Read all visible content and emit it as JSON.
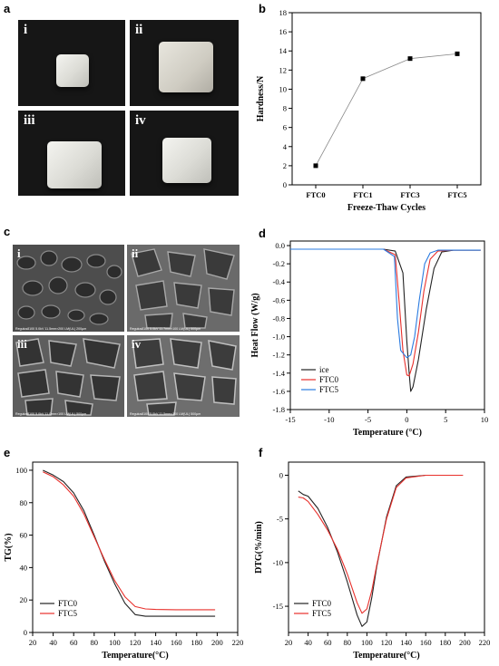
{
  "panels": {
    "a": {
      "label": "a",
      "photos": [
        "i",
        "ii",
        "iii",
        "iv"
      ]
    },
    "c": {
      "label": "c",
      "images": [
        {
          "numeral": "i",
          "caption": "Regulus8100 5.0kV 11.5mm×200 LM(UL)   200µm"
        },
        {
          "numeral": "ii",
          "caption": "Regulus8100 5.0kV 11.7mm×100 LM(UL)   500µm"
        },
        {
          "numeral": "iii",
          "caption": "Regulus8100 5.0kV 11.0mm×100 LM(UL)   500µm"
        },
        {
          "numeral": "iv",
          "caption": "Regulus8100 5.0kV 11.5mm×100 LM(UL)   500µm"
        }
      ]
    }
  },
  "chart_data": [
    {
      "id": "b",
      "type": "line",
      "panel_label": "b",
      "categories": [
        "FTC0",
        "FTC1",
        "FTC3",
        "FTC5"
      ],
      "series": [
        {
          "values": [
            2.0,
            11.1,
            13.2,
            13.7
          ],
          "color": "#000000"
        }
      ],
      "xlabel": "Freeze-Thaw Cycles",
      "ylabel": "Hardness/N",
      "ylim": [
        0,
        18
      ],
      "yticks": [
        0,
        2,
        4,
        6,
        8,
        10,
        12,
        14,
        16,
        18
      ]
    },
    {
      "id": "d",
      "type": "line",
      "panel_label": "d",
      "xlabel": "Temperature (°C)",
      "ylabel": "Heat Flow (W/g)",
      "xlim": [
        -15,
        10
      ],
      "ylim": [
        -1.8,
        0.05
      ],
      "xticks": [
        -15,
        -10,
        -5,
        0,
        5,
        10
      ],
      "yticks": [
        0.0,
        -0.2,
        -0.4,
        -0.6,
        -0.8,
        -1.0,
        -1.2,
        -1.4,
        -1.6,
        -1.8
      ],
      "legend_position": "bottom-left",
      "series": [
        {
          "name": "ice",
          "color": "#222222",
          "x": [
            -15,
            -3,
            -1.5,
            -0.5,
            0,
            0.3,
            0.5,
            0.8,
            1.5,
            2.5,
            3.5,
            4.5,
            6,
            9.5
          ],
          "y": [
            -0.04,
            -0.04,
            -0.06,
            -0.3,
            -1.05,
            -1.4,
            -1.6,
            -1.55,
            -1.25,
            -0.7,
            -0.25,
            -0.07,
            -0.05,
            -0.05
          ]
        },
        {
          "name": "FTC0",
          "color": "#e8302c",
          "x": [
            -15,
            -3,
            -1.5,
            -1,
            -0.5,
            0,
            0.3,
            0.8,
            1.5,
            2.2,
            3,
            4,
            6,
            9.5
          ],
          "y": [
            -0.04,
            -0.04,
            -0.1,
            -0.6,
            -1.15,
            -1.42,
            -1.43,
            -1.3,
            -0.95,
            -0.5,
            -0.15,
            -0.06,
            -0.05,
            -0.05
          ]
        },
        {
          "name": "FTC5",
          "color": "#2a7be0",
          "x": [
            -15,
            -3,
            -1.6,
            -1.2,
            -0.8,
            -0.3,
            0,
            0.5,
            1,
            1.6,
            2.3,
            3,
            4,
            6,
            9.5
          ],
          "y": [
            -0.04,
            -0.04,
            -0.12,
            -0.8,
            -1.15,
            -1.2,
            -1.23,
            -1.2,
            -1.0,
            -0.6,
            -0.2,
            -0.08,
            -0.05,
            -0.05,
            -0.05
          ]
        }
      ]
    },
    {
      "id": "e",
      "type": "line",
      "panel_label": "e",
      "xlabel": "Temperature(°C)",
      "ylabel": "TG(%)",
      "xlim": [
        20,
        220
      ],
      "ylim": [
        0,
        105
      ],
      "xticks": [
        20,
        40,
        60,
        80,
        100,
        120,
        140,
        160,
        180,
        200,
        220
      ],
      "yticks": [
        0,
        20,
        40,
        60,
        80,
        100
      ],
      "legend_position": "bottom-left",
      "series": [
        {
          "name": "FTC0",
          "color": "#222222",
          "x": [
            30,
            40,
            50,
            60,
            70,
            80,
            90,
            100,
            110,
            120,
            130,
            140,
            160,
            180,
            198
          ],
          "y": [
            100,
            97,
            93,
            86,
            75,
            60,
            44,
            30,
            18,
            11,
            10,
            10,
            10,
            10,
            10
          ]
        },
        {
          "name": "FTC5",
          "color": "#e8302c",
          "x": [
            30,
            40,
            50,
            60,
            70,
            80,
            90,
            100,
            110,
            120,
            130,
            140,
            160,
            180,
            198
          ],
          "y": [
            99,
            96,
            91,
            84,
            73,
            59,
            45,
            32,
            22,
            16,
            14.5,
            14.2,
            14,
            14,
            14
          ]
        }
      ]
    },
    {
      "id": "f",
      "type": "line",
      "panel_label": "f",
      "xlabel": "Temperature(°C)",
      "ylabel": "DTG(%/min)",
      "xlim": [
        20,
        220
      ],
      "ylim": [
        -18,
        1.5
      ],
      "xticks": [
        20,
        40,
        60,
        80,
        100,
        120,
        140,
        160,
        180,
        200,
        220
      ],
      "yticks": [
        0,
        -5,
        -10,
        -15
      ],
      "legend_position": "bottom-left",
      "series": [
        {
          "name": "FTC0",
          "color": "#222222",
          "x": [
            30,
            35,
            40,
            50,
            60,
            70,
            80,
            90,
            95,
            100,
            105,
            110,
            120,
            130,
            140,
            160,
            198
          ],
          "y": [
            -1.8,
            -2.2,
            -2.4,
            -3.8,
            -6,
            -8.8,
            -12.2,
            -16,
            -17.3,
            -16.8,
            -14,
            -10.5,
            -4.8,
            -1.2,
            -0.2,
            0,
            0
          ]
        },
        {
          "name": "FTC5",
          "color": "#e8302c",
          "x": [
            30,
            35,
            40,
            50,
            60,
            70,
            80,
            90,
            95,
            100,
            105,
            110,
            120,
            130,
            140,
            160,
            198
          ],
          "y": [
            -2.5,
            -2.6,
            -3,
            -4.5,
            -6.3,
            -8.5,
            -11.3,
            -14.6,
            -15.8,
            -15.3,
            -13.2,
            -10.3,
            -5,
            -1.4,
            -0.3,
            0,
            0
          ]
        }
      ]
    }
  ]
}
